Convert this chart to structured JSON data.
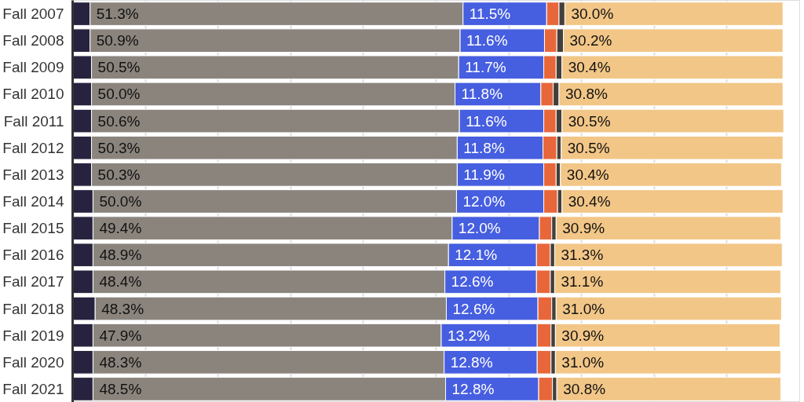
{
  "chart_data": {
    "type": "bar",
    "orientation": "horizontal",
    "stacked": true,
    "categories": [
      "Fall 2007",
      "Fall 2008",
      "Fall 2009",
      "Fall 2010",
      "Fall 2011",
      "Fall 2012",
      "Fall 2013",
      "Fall 2014",
      "Fall 2015",
      "Fall 2016",
      "Fall 2017",
      "Fall 2018",
      "Fall 2019",
      "Fall 2020",
      "Fall 2021"
    ],
    "series": [
      {
        "color": "#27233f",
        "values": [
          2.4,
          2.4,
          2.6,
          2.6,
          2.6,
          2.6,
          2.6,
          2.8,
          2.8,
          2.8,
          2.8,
          3.1,
          2.8,
          2.8,
          2.8
        ]
      },
      {
        "color": "#8a847d",
        "values": [
          51.3,
          50.9,
          50.5,
          50.0,
          50.6,
          50.3,
          50.3,
          50.0,
          49.4,
          48.9,
          48.4,
          48.3,
          47.9,
          48.3,
          48.5
        ],
        "value_labels": [
          "51.3%",
          "50.9%",
          "50.5%",
          "50.0%",
          "50.6%",
          "50.3%",
          "50.3%",
          "50.0%",
          "49.4%",
          "48.9%",
          "48.4%",
          "48.3%",
          "47.9%",
          "48.3%",
          "48.5%"
        ]
      },
      {
        "color": "#465ee0",
        "values": [
          11.5,
          11.6,
          11.7,
          11.8,
          11.6,
          11.8,
          11.9,
          12.0,
          12.0,
          12.1,
          12.6,
          12.6,
          13.2,
          12.8,
          12.8
        ],
        "value_labels": [
          "11.5%",
          "11.6%",
          "11.7%",
          "11.8%",
          "11.6%",
          "11.8%",
          "11.9%",
          "12.0%",
          "12.0%",
          "12.1%",
          "12.6%",
          "12.6%",
          "13.2%",
          "12.8%",
          "12.8%"
        ]
      },
      {
        "color": "#e8673a",
        "values": [
          1.7,
          1.7,
          1.7,
          1.7,
          1.7,
          1.9,
          1.7,
          1.9,
          1.7,
          1.9,
          1.9,
          1.9,
          1.9,
          1.9,
          1.9
        ]
      },
      {
        "color": "#433f3a",
        "values": [
          0.8,
          0.9,
          0.8,
          0.8,
          0.8,
          0.6,
          0.6,
          0.6,
          0.6,
          0.6,
          0.6,
          0.6,
          0.6,
          0.6,
          0.6
        ]
      },
      {
        "color": "#f2c687",
        "values": [
          30.0,
          30.2,
          30.4,
          30.8,
          30.5,
          30.5,
          30.4,
          30.4,
          30.9,
          31.3,
          31.1,
          31.0,
          30.9,
          31.0,
          30.8
        ],
        "value_labels": [
          "30.0%",
          "30.2%",
          "30.4%",
          "30.8%",
          "30.5%",
          "30.5%",
          "30.4%",
          "30.4%",
          "30.9%",
          "31.3%",
          "31.1%",
          "31.0%",
          "30.9%",
          "31.0%",
          "30.8%"
        ]
      }
    ],
    "xlim": [
      0,
      100
    ],
    "xticks": [
      {
        "value": 0,
        "label": null
      },
      {
        "value": 10,
        "label": null
      },
      {
        "value": 20,
        "label": null
      },
      {
        "value": 30,
        "label": null
      },
      {
        "value": 40,
        "label": null
      },
      {
        "value": 50,
        "label": null
      },
      {
        "value": 60,
        "label": null
      },
      {
        "value": 70,
        "label": null
      },
      {
        "value": 80,
        "label": null
      },
      {
        "value": 90,
        "label": null
      },
      {
        "value": 100,
        "label": null
      }
    ],
    "grid": "x",
    "tick_labels": "y"
  }
}
